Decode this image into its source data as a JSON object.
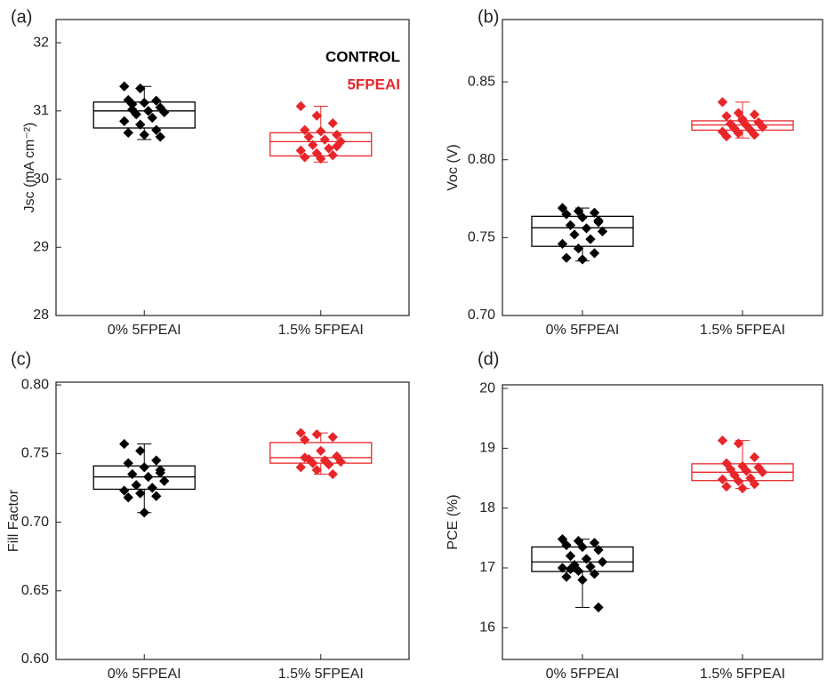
{
  "chart_data": [
    {
      "type": "box",
      "panel": "(a)",
      "ylabel": "Jsc (mA cm⁻²)",
      "categories": [
        "0% 5FPEAI",
        "1.5% 5FPEAI"
      ],
      "ylim": [
        28,
        32.34
      ],
      "yticks": [
        28,
        29,
        30,
        31,
        32
      ],
      "series": [
        {
          "name": "CONTROL",
          "color": "#000000",
          "q1": 30.75,
          "median": 31.0,
          "q3": 31.13,
          "whisker_low": 30.58,
          "whisker_high": 31.36,
          "points": [
            31.36,
            31.33,
            31.15,
            31.16,
            31.12,
            31.05,
            31.02,
            31.0,
            30.98,
            30.95,
            30.9,
            30.85,
            30.8,
            30.72,
            30.68,
            30.65,
            30.62,
            31.1
          ]
        },
        {
          "name": "5FPEAI",
          "color": "#e8262a",
          "q1": 30.34,
          "median": 30.55,
          "q3": 30.68,
          "whisker_low": 30.25,
          "whisker_high": 31.07,
          "points": [
            31.07,
            30.93,
            30.82,
            30.72,
            30.7,
            30.65,
            30.62,
            30.58,
            30.55,
            30.5,
            30.45,
            30.42,
            30.38,
            30.35,
            30.32,
            30.3,
            30.48
          ]
        }
      ]
    },
    {
      "type": "box",
      "panel": "(b)",
      "ylabel": "Voc (V)",
      "categories": [
        "0% 5FPEAI",
        "1.5% 5FPEAI"
      ],
      "ylim": [
        0.7,
        0.89
      ],
      "yticks": [
        {
          "value": 0.7,
          "label": "0.70"
        },
        0.75,
        {
          "value": 0.8,
          "label": "0.80"
        },
        0.85
      ],
      "series": [
        {
          "color": "#000000",
          "q1": 0.7444,
          "median": 0.7563,
          "q3": 0.7637,
          "whisker_low": 0.735,
          "whisker_high": 0.769,
          "points": [
            0.769,
            0.767,
            0.766,
            0.765,
            0.763,
            0.761,
            0.758,
            0.756,
            0.754,
            0.752,
            0.749,
            0.746,
            0.743,
            0.74,
            0.737,
            0.736,
            0.76
          ]
        },
        {
          "color": "#e8262a",
          "q1": 0.819,
          "median": 0.8223,
          "q3": 0.825,
          "whisker_low": 0.814,
          "whisker_high": 0.837,
          "points": [
            0.837,
            0.83,
            0.829,
            0.828,
            0.826,
            0.824,
            0.823,
            0.822,
            0.821,
            0.82,
            0.819,
            0.818,
            0.817,
            0.816,
            0.815,
            0.825
          ]
        }
      ]
    },
    {
      "type": "box",
      "panel": "(c)",
      "ylabel": "Fill Factor",
      "categories": [
        "0% 5FPEAI",
        "1.5% 5FPEAI"
      ],
      "ylim": [
        0.6,
        0.802
      ],
      "yticks": [
        {
          "value": 0.6,
          "label": "0.60"
        },
        0.65,
        {
          "value": 0.7,
          "label": "0.70"
        },
        0.75,
        {
          "value": 0.8,
          "label": "0.80"
        }
      ],
      "series": [
        {
          "color": "#000000",
          "q1": 0.724,
          "median": 0.733,
          "q3": 0.741,
          "whisker_low": 0.707,
          "whisker_high": 0.757,
          "points": [
            0.757,
            0.752,
            0.745,
            0.743,
            0.74,
            0.738,
            0.735,
            0.733,
            0.73,
            0.727,
            0.725,
            0.723,
            0.721,
            0.719,
            0.718,
            0.707,
            0.736
          ]
        },
        {
          "color": "#e8262a",
          "q1": 0.743,
          "median": 0.747,
          "q3": 0.758,
          "whisker_low": 0.735,
          "whisker_high": 0.765,
          "points": [
            0.765,
            0.764,
            0.762,
            0.76,
            0.752,
            0.748,
            0.746,
            0.745,
            0.744,
            0.743,
            0.742,
            0.74,
            0.738,
            0.735,
            0.747
          ]
        }
      ]
    },
    {
      "type": "box",
      "panel": "(d)",
      "ylabel": "PCE (%)",
      "categories": [
        "0% 5FPEAI",
        "1.5% 5FPEAI"
      ],
      "ylim": [
        15.47,
        20.06
      ],
      "yticks": [
        16,
        17,
        18,
        19,
        20
      ],
      "series": [
        {
          "color": "#000000",
          "q1": 16.94,
          "median": 17.1,
          "q3": 17.35,
          "whisker_low": 16.34,
          "whisker_high": 17.48,
          "points": [
            17.48,
            17.45,
            17.42,
            17.38,
            17.35,
            17.3,
            17.2,
            17.15,
            17.1,
            17.05,
            17.02,
            17.0,
            16.95,
            16.9,
            16.85,
            16.8,
            16.34,
            16.98
          ]
        },
        {
          "color": "#e8262a",
          "q1": 18.46,
          "median": 18.6,
          "q3": 18.74,
          "whisker_low": 18.33,
          "whisker_high": 19.13,
          "points": [
            19.13,
            19.08,
            18.85,
            18.75,
            18.7,
            18.68,
            18.65,
            18.62,
            18.6,
            18.55,
            18.5,
            18.48,
            18.45,
            18.4,
            18.36,
            18.33
          ]
        }
      ]
    }
  ]
}
